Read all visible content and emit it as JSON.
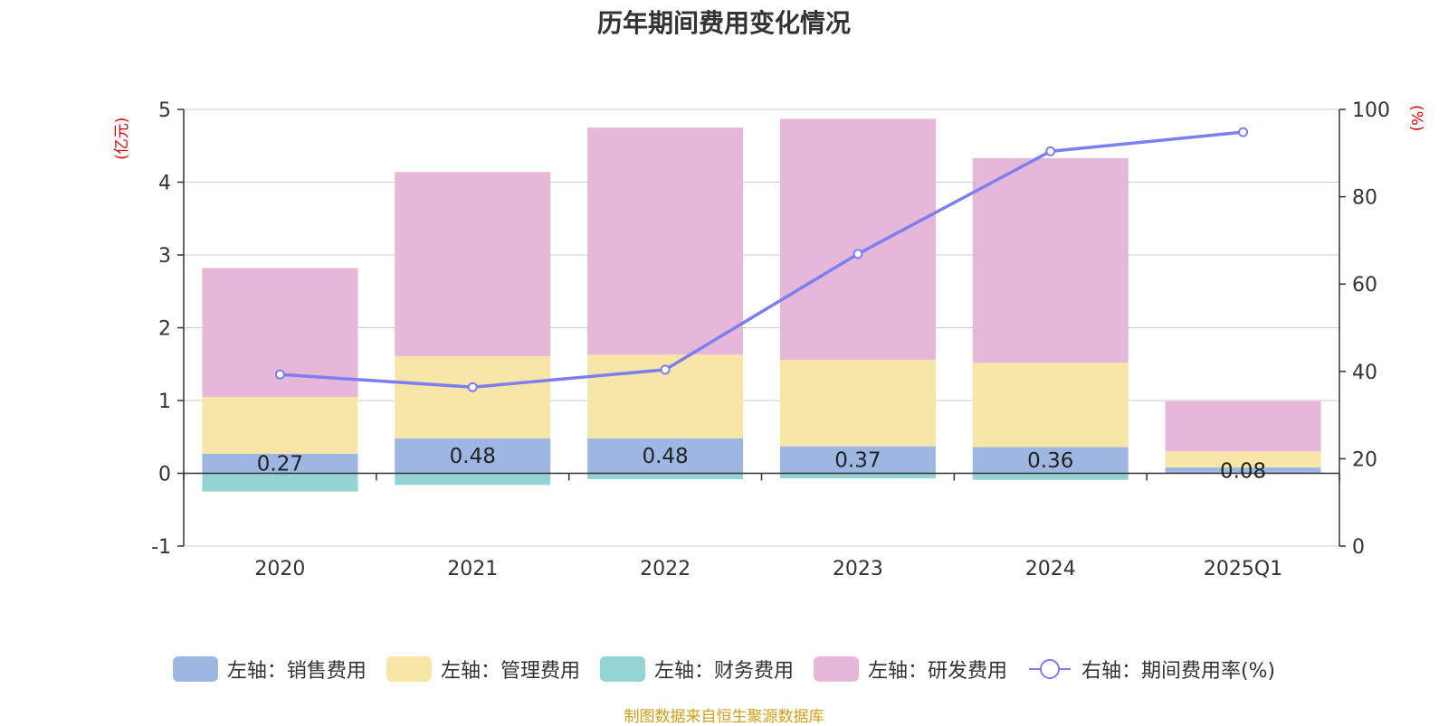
{
  "chart_data": {
    "type": "bar",
    "title": "历年期间费用变化情况",
    "categories": [
      "2020",
      "2021",
      "2022",
      "2023",
      "2024",
      "2025Q1"
    ],
    "stacked": true,
    "left_axis": {
      "label": "(亿元)",
      "ylim": [
        -1,
        5
      ],
      "ticks": [
        -1,
        0,
        1,
        2,
        3,
        4,
        5
      ]
    },
    "right_axis": {
      "label": "(%)",
      "ylim": [
        0,
        100
      ],
      "ticks": [
        0,
        20,
        40,
        60,
        80,
        100
      ]
    },
    "series": [
      {
        "name": "左轴：销售费用",
        "type": "bar",
        "color": "#9db7e2",
        "values": [
          0.27,
          0.48,
          0.48,
          0.37,
          0.36,
          0.08
        ],
        "labels": [
          "0.27",
          "0.48",
          "0.48",
          "0.37",
          "0.36",
          "0.08"
        ]
      },
      {
        "name": "左轴：管理费用",
        "type": "bar",
        "color": "#f8e6a8",
        "values": [
          0.78,
          1.13,
          1.15,
          1.19,
          1.16,
          0.22
        ]
      },
      {
        "name": "左轴：财务费用",
        "type": "bar",
        "color": "#94d3d3",
        "values": [
          -0.25,
          -0.16,
          -0.08,
          -0.07,
          -0.09,
          0.0
        ]
      },
      {
        "name": "左轴：研发费用",
        "type": "bar",
        "color": "#e6b7d9",
        "values": [
          1.77,
          2.53,
          3.12,
          3.31,
          2.81,
          0.69
        ]
      },
      {
        "name": "右轴：期间费用率(%)",
        "type": "line",
        "color": "#7b7ff0",
        "values": [
          39.3,
          36.4,
          40.4,
          66.9,
          90.4,
          94.8
        ]
      }
    ],
    "grid": true,
    "legend_position": "bottom"
  },
  "source_note": "制图数据来自恒生聚源数据库"
}
